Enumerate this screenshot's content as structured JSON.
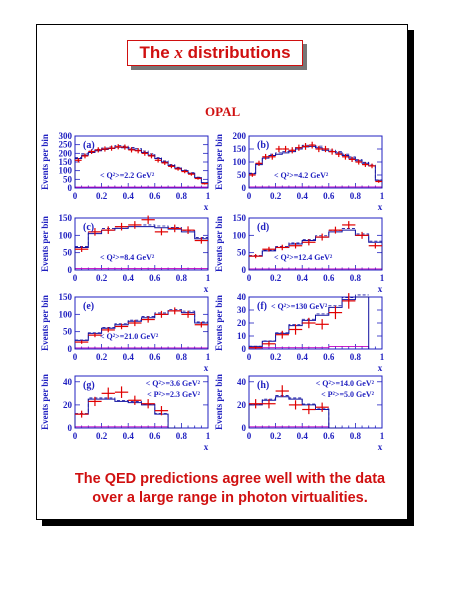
{
  "slide": {
    "title_prefix": "The ",
    "title_var": "x",
    "title_suffix": " distributions",
    "experiment": "OPAL",
    "caption_line1": "The QED predictions agree well with the data",
    "caption_line2": "over a large range in photon virtualities."
  },
  "colors": {
    "accent": "#d01010",
    "axis": "#2020c0",
    "data": "#e00000",
    "mc": "#1010a0",
    "bg_curve": "#c000c0"
  },
  "chart_data": [
    {
      "type": "line",
      "panel": "(a)",
      "label": [
        "< Q²>=2.2 GeV²"
      ],
      "xlabel": "x",
      "ylabel": "Events per bin",
      "xlim": [
        0,
        1
      ],
      "ylim": [
        0,
        300
      ],
      "yticks": [
        0,
        50,
        100,
        150,
        200,
        250,
        300
      ],
      "xticks": [
        0,
        0.2,
        0.4,
        0.6,
        0.8,
        1
      ],
      "edges": [
        0,
        0.05,
        0.1,
        0.15,
        0.2,
        0.25,
        0.3,
        0.35,
        0.4,
        0.45,
        0.5,
        0.55,
        0.6,
        0.65,
        0.7,
        0.75,
        0.8,
        0.85,
        0.9,
        0.95,
        1.0
      ],
      "mc": [
        170,
        190,
        205,
        215,
        222,
        228,
        235,
        232,
        225,
        218,
        205,
        190,
        170,
        150,
        130,
        115,
        100,
        85,
        60,
        30
      ],
      "data": [
        160,
        185,
        210,
        220,
        225,
        230,
        238,
        236,
        220,
        215,
        200,
        185,
        160,
        145,
        125,
        110,
        95,
        80,
        55,
        25
      ],
      "err": [
        13,
        14,
        14,
        15,
        15,
        15,
        15,
        15,
        15,
        15,
        14,
        14,
        13,
        12,
        11,
        10,
        10,
        9,
        7,
        5
      ],
      "bg": [
        5,
        5,
        5,
        5,
        5,
        5,
        5,
        5,
        5,
        5,
        5,
        5,
        5,
        5,
        5,
        5,
        5,
        5,
        5,
        5
      ]
    },
    {
      "type": "line",
      "panel": "(b)",
      "label": [
        "< Q²>=4.2 GeV²"
      ],
      "xlabel": "x",
      "ylabel": "Events per bin",
      "xlim": [
        0,
        1
      ],
      "ylim": [
        0,
        200
      ],
      "yticks": [
        0,
        50,
        100,
        150,
        200
      ],
      "xticks": [
        0,
        0.2,
        0.4,
        0.6,
        0.8,
        1
      ],
      "edges": [
        0,
        0.05,
        0.1,
        0.15,
        0.2,
        0.25,
        0.3,
        0.35,
        0.4,
        0.45,
        0.5,
        0.55,
        0.6,
        0.65,
        0.7,
        0.75,
        0.8,
        0.85,
        0.9,
        0.95,
        1.0
      ],
      "mc": [
        55,
        90,
        115,
        125,
        130,
        135,
        140,
        150,
        158,
        160,
        155,
        145,
        140,
        135,
        125,
        115,
        105,
        95,
        85,
        30
      ],
      "data": [
        50,
        95,
        120,
        120,
        150,
        150,
        145,
        155,
        160,
        165,
        150,
        150,
        140,
        130,
        120,
        110,
        100,
        90,
        85,
        25
      ],
      "err": [
        7,
        10,
        11,
        11,
        12,
        12,
        12,
        12,
        13,
        13,
        12,
        12,
        12,
        11,
        11,
        10,
        10,
        9,
        9,
        5
      ],
      "bg": [
        4,
        4,
        4,
        4,
        4,
        4,
        4,
        4,
        4,
        4,
        4,
        4,
        4,
        4,
        4,
        4,
        4,
        4,
        4,
        4
      ]
    },
    {
      "type": "line",
      "panel": "(c)",
      "label": [
        "< Q²>=8.4 GeV²"
      ],
      "xlabel": "x",
      "ylabel": "Events per bin",
      "xlim": [
        0,
        1
      ],
      "ylim": [
        0,
        150
      ],
      "yticks": [
        0,
        50,
        100,
        150
      ],
      "xticks": [
        0,
        0.2,
        0.4,
        0.6,
        0.8,
        1
      ],
      "edges": [
        0,
        0.1,
        0.2,
        0.3,
        0.4,
        0.5,
        0.6,
        0.7,
        0.8,
        0.9,
        1.0
      ],
      "mc": [
        65,
        105,
        115,
        120,
        125,
        125,
        122,
        118,
        110,
        90
      ],
      "data": [
        60,
        110,
        115,
        125,
        130,
        145,
        110,
        120,
        115,
        85
      ],
      "err": [
        8,
        11,
        11,
        11,
        11,
        12,
        10,
        11,
        11,
        9
      ],
      "bg": [
        4,
        4,
        4,
        4,
        4,
        4,
        4,
        4,
        4,
        4
      ]
    },
    {
      "type": "line",
      "panel": "(d)",
      "label": [
        "< Q²>=12.4 GeV²"
      ],
      "xlabel": "x",
      "ylabel": "Events per bin",
      "xlim": [
        0,
        1
      ],
      "ylim": [
        0,
        150
      ],
      "yticks": [
        0,
        50,
        100,
        150
      ],
      "xticks": [
        0,
        0.2,
        0.4,
        0.6,
        0.8,
        1
      ],
      "edges": [
        0,
        0.1,
        0.2,
        0.3,
        0.4,
        0.5,
        0.6,
        0.7,
        0.8,
        0.9,
        1.0
      ],
      "mc": [
        40,
        55,
        65,
        75,
        85,
        95,
        110,
        115,
        100,
        80
      ],
      "data": [
        40,
        60,
        65,
        70,
        80,
        95,
        115,
        130,
        100,
        70
      ],
      "err": [
        6,
        7,
        8,
        8,
        9,
        10,
        10,
        11,
        10,
        8
      ],
      "bg": [
        3,
        3,
        3,
        3,
        3,
        3,
        3,
        3,
        3,
        3
      ]
    },
    {
      "type": "line",
      "panel": "(e)",
      "label": [
        "< Q²>=21.0 GeV²"
      ],
      "xlabel": "x",
      "ylabel": "Events per bin",
      "xlim": [
        0,
        1
      ],
      "ylim": [
        0,
        150
      ],
      "yticks": [
        0,
        50,
        100,
        150
      ],
      "xticks": [
        0,
        0.2,
        0.4,
        0.6,
        0.8,
        1
      ],
      "edges": [
        0,
        0.1,
        0.2,
        0.3,
        0.4,
        0.5,
        0.6,
        0.7,
        0.8,
        0.9,
        1.0
      ],
      "mc": [
        25,
        45,
        60,
        70,
        80,
        90,
        100,
        110,
        105,
        75
      ],
      "data": [
        20,
        40,
        55,
        65,
        75,
        85,
        100,
        110,
        100,
        70
      ],
      "err": [
        5,
        6,
        7,
        8,
        9,
        9,
        10,
        10,
        10,
        8
      ],
      "bg": [
        3,
        3,
        3,
        3,
        3,
        3,
        3,
        3,
        3,
        3
      ]
    },
    {
      "type": "line",
      "panel": "(f)",
      "label": [
        "< Q²>=130 GeV²"
      ],
      "xlabel": "x",
      "ylabel": "Events per bin",
      "xlim": [
        0,
        1
      ],
      "ylim": [
        0,
        40
      ],
      "yticks": [
        0,
        10,
        20,
        30,
        40
      ],
      "xticks": [
        0,
        0.2,
        0.4,
        0.6,
        0.8,
        1
      ],
      "edges": [
        0,
        0.1,
        0.2,
        0.3,
        0.4,
        0.5,
        0.6,
        0.7,
        0.8,
        0.9
      ],
      "mc": [
        2,
        6,
        12,
        18,
        22,
        26,
        32,
        38,
        40
      ],
      "data": [
        1,
        4,
        11,
        15,
        20,
        19,
        28,
        37,
        0
      ],
      "err": [
        1,
        2,
        3,
        4,
        4,
        4,
        5,
        6,
        0
      ],
      "bg": [
        1,
        1,
        1,
        1,
        1,
        1,
        2,
        2,
        2
      ]
    },
    {
      "type": "line",
      "panel": "(g)",
      "label": [
        "< Q²>=3.6 GeV²",
        "< P²>=2.3 GeV²"
      ],
      "xlabel": "x",
      "ylabel": "Events per bin",
      "xlim": [
        0,
        1
      ],
      "ylim": [
        0,
        45
      ],
      "yticks": [
        0,
        20,
        40
      ],
      "xticks": [
        0,
        0.2,
        0.4,
        0.6,
        0.8,
        1
      ],
      "edges": [
        0,
        0.1,
        0.2,
        0.3,
        0.4,
        0.5,
        0.6,
        0.7,
        0.8
      ],
      "mc": [
        12,
        25,
        25,
        23,
        22,
        20,
        12,
        0
      ],
      "data": [
        12,
        23,
        30,
        31,
        24,
        21,
        15,
        0
      ],
      "err": [
        3,
        4,
        5,
        5,
        4,
        4,
        4,
        0
      ],
      "bg": [
        1,
        1,
        1,
        1,
        1,
        1,
        1,
        0
      ]
    },
    {
      "type": "line",
      "panel": "(h)",
      "label": [
        "< Q²>=14.0 GeV²",
        "< P²>=5.0 GeV²"
      ],
      "xlabel": "x",
      "ylabel": "Events per bin",
      "xlim": [
        0,
        1
      ],
      "ylim": [
        0,
        45
      ],
      "yticks": [
        0,
        20,
        40
      ],
      "xticks": [
        0,
        0.2,
        0.4,
        0.6,
        0.8,
        1
      ],
      "edges": [
        0,
        0.1,
        0.2,
        0.3,
        0.4,
        0.5,
        0.6,
        0.7
      ],
      "mc": [
        20,
        24,
        27,
        25,
        20,
        16,
        0
      ],
      "data": [
        21,
        21,
        32,
        20,
        16,
        18,
        0
      ],
      "err": [
        4,
        4,
        5,
        4,
        4,
        4,
        0
      ],
      "bg": [
        1,
        1,
        1,
        1,
        1,
        1,
        0
      ]
    }
  ]
}
